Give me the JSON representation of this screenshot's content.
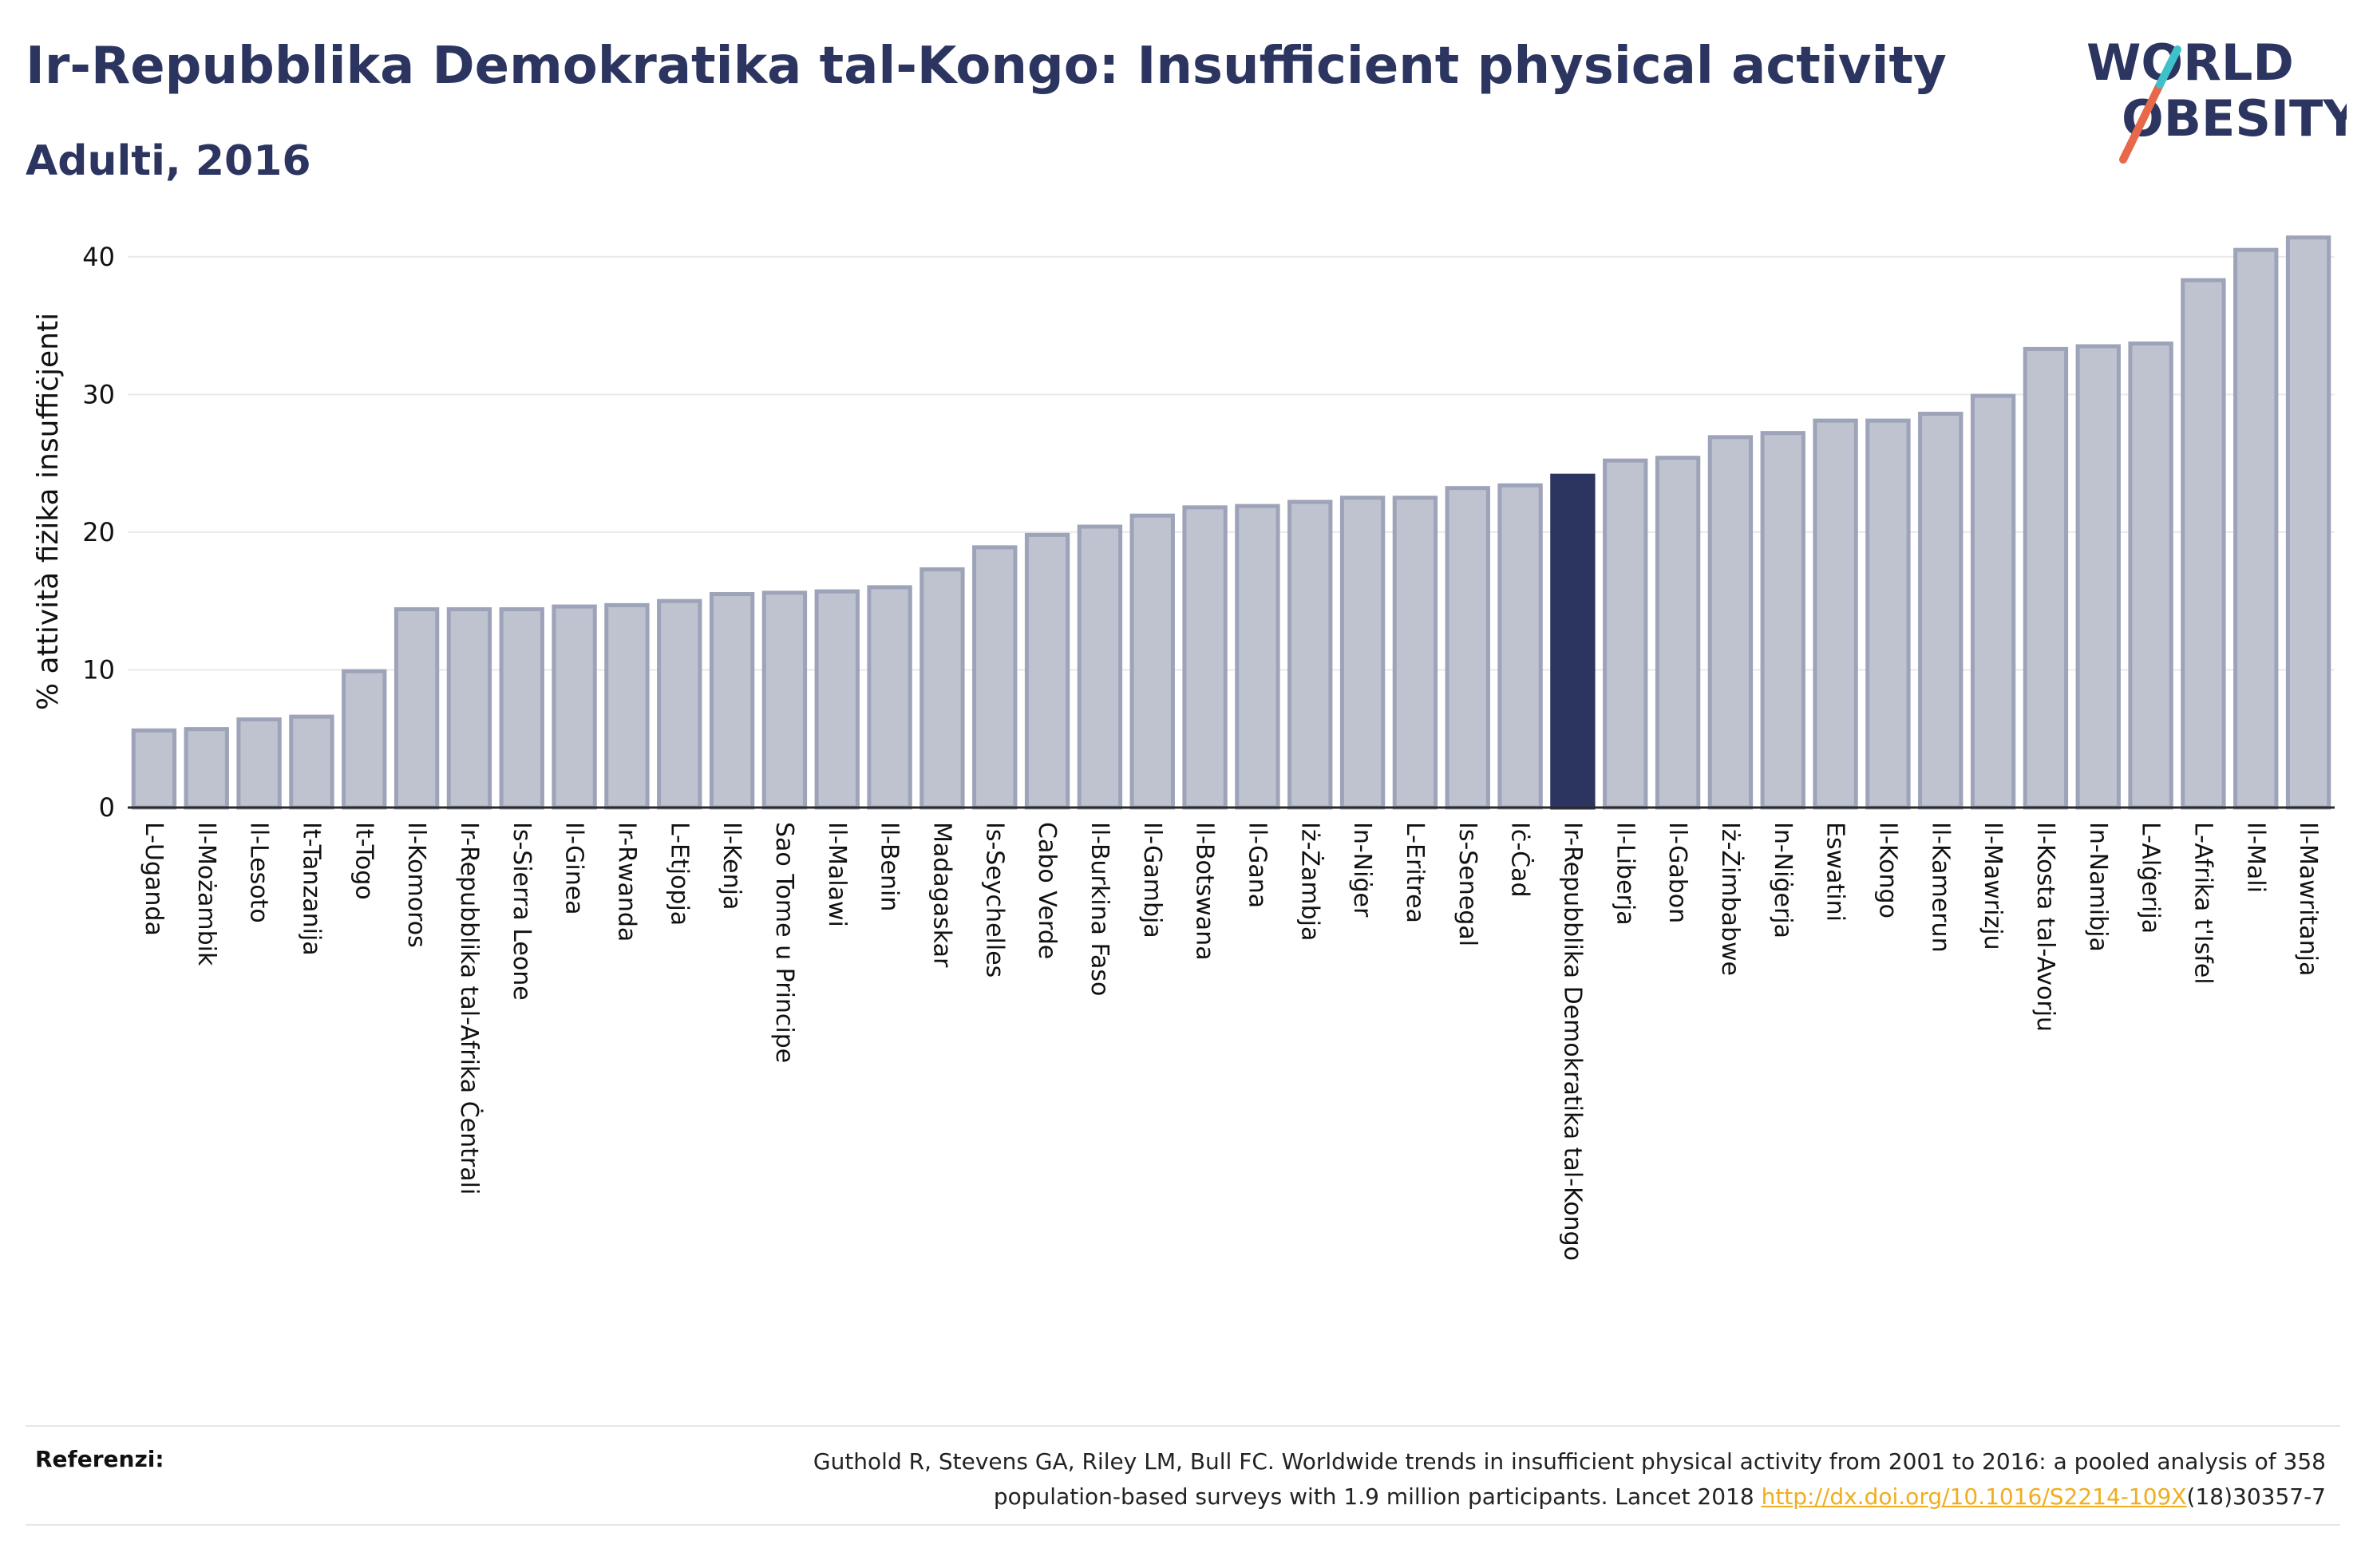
{
  "title": "Ir-Repubblika Demokratika tal-Kongo: Insufficient physical activity",
  "subtitle": "Adulti, 2016",
  "logo": {
    "line1": "WORLD",
    "line2": "OBESITY",
    "accent_color": "#e8684a",
    "accent_color2": "#3fc1c9"
  },
  "references": {
    "label": "Referenzi:",
    "line1": "Guthold R, Stevens GA, Riley LM, Bull FC. Worldwide trends in insufficient physical activity from 2001 to 2016: a pooled analysis of 358",
    "line2_pre": "population-based surveys with 1.9 million participants. Lancet 2018 ",
    "link": "http://dx.doi.org/10.1016/S2214-109X",
    "line2_post": "(18)30357-7"
  },
  "chart_data": {
    "type": "bar",
    "ylabel": "% attività fiżika insuffiċjenti",
    "ylim": [
      0,
      43
    ],
    "yticks": [
      0,
      10,
      20,
      30,
      40
    ],
    "grid": true,
    "highlight": "Ir-Repubblika Demokratika tal-Kongo",
    "colors": {
      "bar": "#bfc3d0",
      "bar_edge": "#9da3b8",
      "highlight": "#2c3560"
    },
    "categories": [
      "L-Uganda",
      "Il-Możambik",
      "Il-Lesoto",
      "It-Tanzanija",
      "It-Togo",
      "Il-Komoros",
      "Ir-Repubblika tal-Afrika Ċentrali",
      "Is-Sierra Leone",
      "Il-Ginea",
      "Ir-Rwanda",
      "L-Etjopja",
      "Il-Kenja",
      "Sao Tome u Principe",
      "Il-Malawi",
      "Il-Benin",
      "Madagaskar",
      "Is-Seychelles",
      "Cabo Verde",
      "Il-Burkina Faso",
      "Il-Gambja",
      "Il-Botswana",
      "Il-Gana",
      "Iż-Żambja",
      "In-Niġer",
      "L-Eritrea",
      "Is-Senegal",
      "Iċ-Ċad",
      "Ir-Repubblika Demokratika tal-Kongo",
      "Il-Liberja",
      "Il-Gabon",
      "Iż-Żimbabwe",
      "In-Niġerja",
      "Eswatini",
      "Il-Kongo",
      "Il-Kamerun",
      "Il-Mawrizju",
      "Il-Kosta tal-Avorju",
      "In-Namibja",
      "L-Alġerija",
      "L-Afrika t'Isfel",
      "Il-Mali",
      "Il-Mawritanja"
    ],
    "values": [
      5.6,
      5.7,
      6.4,
      6.6,
      9.9,
      14.4,
      14.4,
      14.4,
      14.6,
      14.7,
      15.0,
      15.5,
      15.6,
      15.7,
      16.0,
      17.3,
      18.9,
      19.8,
      20.4,
      21.2,
      21.8,
      21.9,
      22.2,
      22.5,
      22.5,
      23.2,
      23.4,
      24.1,
      25.2,
      25.4,
      26.9,
      27.2,
      28.1,
      28.1,
      28.6,
      29.9,
      33.3,
      33.5,
      33.7,
      38.3,
      40.5,
      41.4
    ]
  }
}
